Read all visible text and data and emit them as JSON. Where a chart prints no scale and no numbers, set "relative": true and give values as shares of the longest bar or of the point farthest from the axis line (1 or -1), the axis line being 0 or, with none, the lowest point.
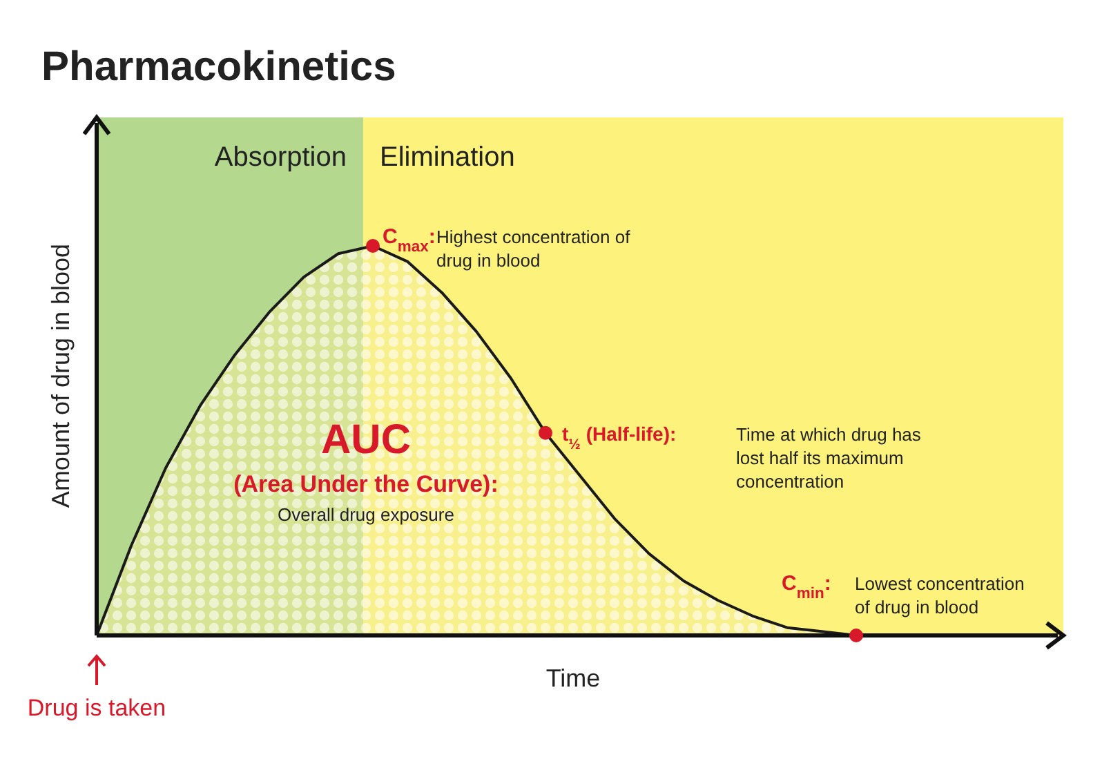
{
  "chart_data": {
    "type": "area",
    "title": "Pharmacokinetics",
    "xlabel": "Time",
    "ylabel": "Amount of drug in blood",
    "relative": true,
    "categories": [
      null,
      null,
      null,
      null,
      null,
      null,
      null,
      null,
      null,
      null,
      null,
      null,
      null,
      null,
      null,
      null,
      null,
      null,
      null,
      null,
      null,
      null,
      null
    ],
    "series": [
      {
        "color": "#1a1a1a",
        "values": [
          0,
          0.23,
          0.43,
          0.59,
          0.72,
          0.83,
          0.92,
          0.98,
          1,
          0.96,
          0.88,
          0.78,
          0.66,
          0.52,
          0.41,
          0.3,
          0.21,
          0.14,
          0.09,
          0.05,
          0.02,
          0.01,
          0
        ]
      }
    ],
    "annotations": [
      "C$_{max}$:",
      "Highest concentration of\ndrug in blood",
      "t$_{½}$ (Half-life):",
      "Time at which drug has\nlost half its maximum\nconcentration",
      "C$_{min}$:",
      "Lowest concentration\nof drug in blood",
      "AUC",
      "(Area Under the Curve):",
      "Overall drug exposure",
      "Drug is taken",
      "Absorption",
      "Elimination"
    ]
  }
}
